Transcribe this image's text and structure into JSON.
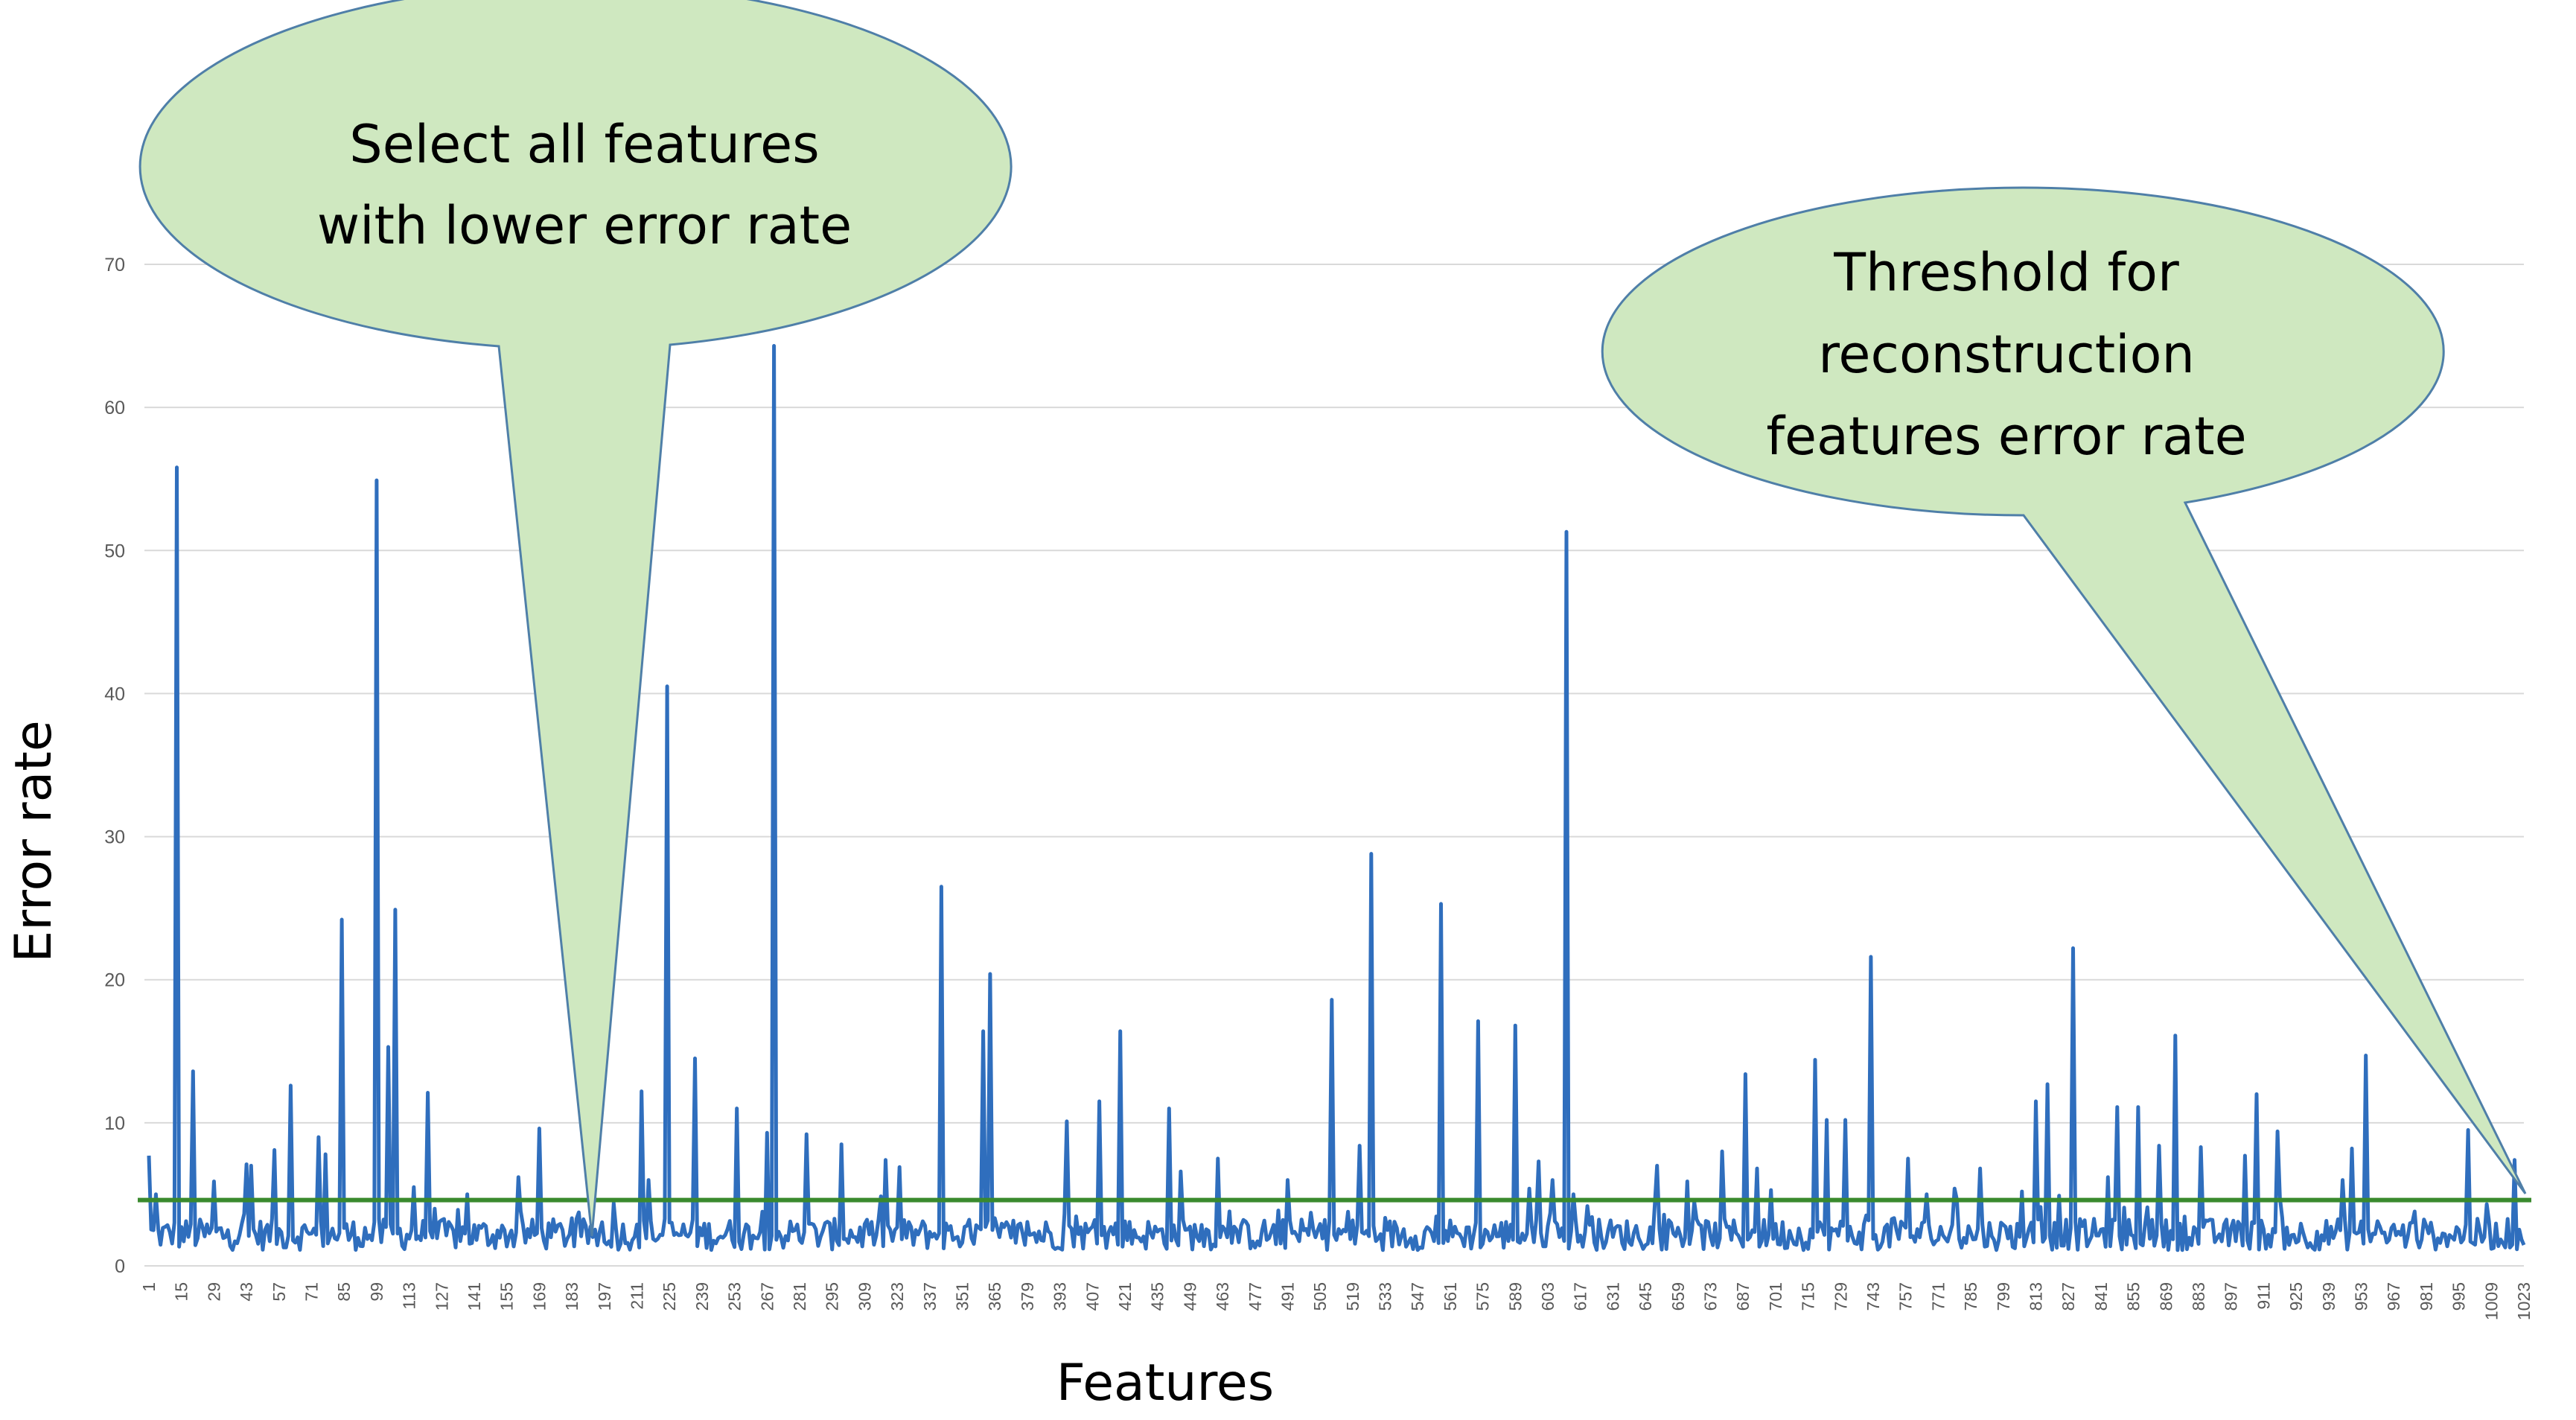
{
  "chart_data": {
    "type": "line",
    "xlabel": "Features",
    "ylabel": "Error rate",
    "ylim": [
      0,
      70
    ],
    "xlim": [
      1,
      1023
    ],
    "grid": true,
    "y_ticks": [
      0,
      10,
      20,
      30,
      40,
      50,
      60,
      70
    ],
    "x_ticks": [
      1,
      15,
      29,
      43,
      57,
      71,
      85,
      99,
      113,
      127,
      141,
      155,
      169,
      183,
      197,
      211,
      225,
      239,
      253,
      267,
      281,
      295,
      309,
      323,
      337,
      351,
      365,
      379,
      393,
      407,
      421,
      435,
      449,
      463,
      477,
      491,
      505,
      519,
      533,
      547,
      561,
      575,
      589,
      603,
      617,
      631,
      645,
      659,
      673,
      687,
      701,
      715,
      729,
      743,
      757,
      771,
      785,
      799,
      813,
      827,
      841,
      855,
      869,
      883,
      897,
      911,
      925,
      939,
      953,
      967,
      981,
      995,
      1009,
      1023
    ],
    "series": [
      {
        "line_color": "#2f6ebd",
        "baseline": 2.2,
        "peaks": [
          {
            "x": 1,
            "y": 7.7
          },
          {
            "x": 4,
            "y": 5.0
          },
          {
            "x": 13,
            "y": 55.8
          },
          {
            "x": 20,
            "y": 13.6
          },
          {
            "x": 29,
            "y": 5.9
          },
          {
            "x": 43,
            "y": 7.1
          },
          {
            "x": 45,
            "y": 7.0
          },
          {
            "x": 55,
            "y": 8.1
          },
          {
            "x": 62,
            "y": 12.6
          },
          {
            "x": 74,
            "y": 9.0
          },
          {
            "x": 77,
            "y": 7.8
          },
          {
            "x": 84,
            "y": 24.2
          },
          {
            "x": 99,
            "y": 54.9
          },
          {
            "x": 104,
            "y": 15.3
          },
          {
            "x": 107,
            "y": 24.9
          },
          {
            "x": 115,
            "y": 5.5
          },
          {
            "x": 121,
            "y": 12.1
          },
          {
            "x": 138,
            "y": 5.0
          },
          {
            "x": 160,
            "y": 6.2
          },
          {
            "x": 169,
            "y": 9.6
          },
          {
            "x": 213,
            "y": 12.2
          },
          {
            "x": 216,
            "y": 6.0
          },
          {
            "x": 224,
            "y": 40.5
          },
          {
            "x": 236,
            "y": 14.5
          },
          {
            "x": 254,
            "y": 11.0
          },
          {
            "x": 267,
            "y": 9.3
          },
          {
            "x": 270,
            "y": 64.3
          },
          {
            "x": 284,
            "y": 9.2
          },
          {
            "x": 299,
            "y": 8.5
          },
          {
            "x": 318,
            "y": 7.4
          },
          {
            "x": 324,
            "y": 6.9
          },
          {
            "x": 342,
            "y": 26.5
          },
          {
            "x": 360,
            "y": 16.4
          },
          {
            "x": 363,
            "y": 20.4
          },
          {
            "x": 396,
            "y": 10.1
          },
          {
            "x": 410,
            "y": 11.5
          },
          {
            "x": 419,
            "y": 16.4
          },
          {
            "x": 440,
            "y": 11.0
          },
          {
            "x": 445,
            "y": 6.6
          },
          {
            "x": 461,
            "y": 7.5
          },
          {
            "x": 491,
            "y": 6.0
          },
          {
            "x": 510,
            "y": 18.6
          },
          {
            "x": 522,
            "y": 8.4
          },
          {
            "x": 527,
            "y": 28.8
          },
          {
            "x": 557,
            "y": 25.3
          },
          {
            "x": 573,
            "y": 17.1
          },
          {
            "x": 589,
            "y": 16.8
          },
          {
            "x": 595,
            "y": 5.4
          },
          {
            "x": 599,
            "y": 7.3
          },
          {
            "x": 605,
            "y": 6.0
          },
          {
            "x": 611,
            "y": 51.3
          },
          {
            "x": 614,
            "y": 5.0
          },
          {
            "x": 650,
            "y": 7.0
          },
          {
            "x": 663,
            "y": 5.9
          },
          {
            "x": 678,
            "y": 8.0
          },
          {
            "x": 688,
            "y": 13.4
          },
          {
            "x": 693,
            "y": 6.8
          },
          {
            "x": 699,
            "y": 5.3
          },
          {
            "x": 718,
            "y": 14.4
          },
          {
            "x": 723,
            "y": 10.2
          },
          {
            "x": 731,
            "y": 10.2
          },
          {
            "x": 742,
            "y": 21.6
          },
          {
            "x": 758,
            "y": 7.5
          },
          {
            "x": 766,
            "y": 5.0
          },
          {
            "x": 778,
            "y": 5.4
          },
          {
            "x": 789,
            "y": 6.8
          },
          {
            "x": 807,
            "y": 5.2
          },
          {
            "x": 813,
            "y": 11.5
          },
          {
            "x": 818,
            "y": 12.7
          },
          {
            "x": 823,
            "y": 4.9
          },
          {
            "x": 829,
            "y": 22.2
          },
          {
            "x": 844,
            "y": 6.2
          },
          {
            "x": 848,
            "y": 11.1
          },
          {
            "x": 857,
            "y": 11.1
          },
          {
            "x": 866,
            "y": 8.4
          },
          {
            "x": 873,
            "y": 16.1
          },
          {
            "x": 884,
            "y": 8.3
          },
          {
            "x": 903,
            "y": 7.7
          },
          {
            "x": 908,
            "y": 12.0
          },
          {
            "x": 917,
            "y": 9.4
          },
          {
            "x": 945,
            "y": 6.0
          },
          {
            "x": 949,
            "y": 8.2
          },
          {
            "x": 955,
            "y": 14.7
          },
          {
            "x": 999,
            "y": 9.5
          },
          {
            "x": 1019,
            "y": 7.4
          },
          {
            "x": 1040,
            "y": 3.7
          }
        ]
      }
    ],
    "threshold": {
      "y": 4.6,
      "color": "#3a8a2e"
    },
    "annotations": [
      {
        "lines": [
          "Select all features",
          "with lower error rate"
        ],
        "fill": "#cfe8c0",
        "stroke": "#4f7fa8"
      },
      {
        "lines": [
          "Threshold for",
          "reconstruction",
          "features error rate"
        ],
        "fill": "#cfe8c0",
        "stroke": "#4f7fa8"
      }
    ]
  }
}
